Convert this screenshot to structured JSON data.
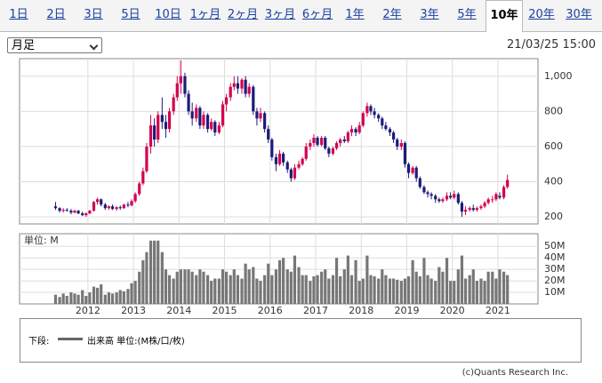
{
  "tabs": [
    "1日",
    "2日",
    "3日",
    "5日",
    "10日",
    "1ヶ月",
    "2ヶ月",
    "3ヶ月",
    "6ヶ月",
    "1年",
    "2年",
    "3年",
    "5年",
    "10年",
    "20年",
    "30年"
  ],
  "selected_tab": "10年",
  "period_select": "月足",
  "datetime": "21/03/25 15:00",
  "legend": {
    "label": "下段:",
    "text": "出来高 単位:(M株/口/枚)"
  },
  "copyright": "(c)Quants Research Inc.",
  "chart_data": {
    "type": "candlestick",
    "up_color": "#d4004f",
    "down_color": "#1c1c7a",
    "volume_color": "#777777",
    "grid": true,
    "xlim": [
      2010.5,
      2021.88
    ],
    "xticks": [
      2012,
      2013,
      2014,
      2015,
      2016,
      2017,
      2018,
      2019,
      2020,
      2021
    ],
    "ylim": [
      160,
      1100
    ],
    "yticks": [
      200,
      400,
      600,
      800,
      {
        "value": 1000,
        "label": "1,000"
      }
    ],
    "volume_ylim": [
      0,
      61
    ],
    "volume_unit_label": "単位: M",
    "volume_yticks": [
      {
        "value": 10,
        "label": "10M"
      },
      {
        "value": 20,
        "label": "20M"
      },
      {
        "value": 30,
        "label": "30M"
      },
      {
        "value": 40,
        "label": "40M"
      },
      {
        "value": 50,
        "label": "50M"
      }
    ],
    "x": [
      2011.29,
      2011.38,
      2011.46,
      2011.54,
      2011.63,
      2011.71,
      2011.79,
      2011.88,
      2011.96,
      2012.04,
      2012.13,
      2012.21,
      2012.29,
      2012.38,
      2012.46,
      2012.54,
      2012.63,
      2012.71,
      2012.79,
      2012.88,
      2012.96,
      2013.04,
      2013.13,
      2013.21,
      2013.29,
      2013.38,
      2013.46,
      2013.54,
      2013.63,
      2013.71,
      2013.79,
      2013.88,
      2013.96,
      2014.04,
      2014.13,
      2014.21,
      2014.29,
      2014.38,
      2014.46,
      2014.54,
      2014.63,
      2014.71,
      2014.79,
      2014.88,
      2014.96,
      2015.04,
      2015.13,
      2015.21,
      2015.29,
      2015.38,
      2015.46,
      2015.54,
      2015.63,
      2015.71,
      2015.79,
      2015.88,
      2015.96,
      2016.04,
      2016.13,
      2016.21,
      2016.29,
      2016.38,
      2016.46,
      2016.54,
      2016.63,
      2016.71,
      2016.79,
      2016.88,
      2016.96,
      2017.04,
      2017.13,
      2017.21,
      2017.29,
      2017.38,
      2017.46,
      2017.54,
      2017.63,
      2017.71,
      2017.79,
      2017.88,
      2017.96,
      2018.04,
      2018.13,
      2018.21,
      2018.29,
      2018.38,
      2018.46,
      2018.54,
      2018.63,
      2018.71,
      2018.79,
      2018.88,
      2018.96,
      2019.04,
      2019.13,
      2019.21,
      2019.29,
      2019.38,
      2019.46,
      2019.54,
      2019.63,
      2019.71,
      2019.79,
      2019.88,
      2019.96,
      2020.04,
      2020.13,
      2020.21,
      2020.29,
      2020.38,
      2020.46,
      2020.54,
      2020.63,
      2020.71,
      2020.79,
      2020.88,
      2020.96,
      2021.04,
      2021.13,
      2021.21
    ],
    "ohlc": [
      [
        260,
        285,
        240,
        250
      ],
      [
        250,
        255,
        225,
        235
      ],
      [
        235,
        250,
        225,
        240
      ],
      [
        240,
        250,
        230,
        235
      ],
      [
        235,
        245,
        215,
        225
      ],
      [
        225,
        240,
        220,
        235
      ],
      [
        235,
        240,
        215,
        220
      ],
      [
        220,
        230,
        205,
        210
      ],
      [
        210,
        225,
        200,
        220
      ],
      [
        220,
        240,
        215,
        235
      ],
      [
        235,
        290,
        230,
        285
      ],
      [
        285,
        310,
        270,
        300
      ],
      [
        300,
        305,
        260,
        270
      ],
      [
        270,
        280,
        240,
        250
      ],
      [
        250,
        265,
        240,
        260
      ],
      [
        260,
        270,
        240,
        245
      ],
      [
        245,
        260,
        235,
        255
      ],
      [
        255,
        265,
        240,
        250
      ],
      [
        250,
        275,
        245,
        270
      ],
      [
        270,
        285,
        255,
        265
      ],
      [
        265,
        300,
        260,
        290
      ],
      [
        290,
        340,
        280,
        330
      ],
      [
        330,
        400,
        320,
        390
      ],
      [
        390,
        480,
        380,
        460
      ],
      [
        460,
        620,
        450,
        600
      ],
      [
        600,
        780,
        560,
        720
      ],
      [
        720,
        760,
        600,
        640
      ],
      [
        640,
        800,
        620,
        780
      ],
      [
        780,
        880,
        700,
        740
      ],
      [
        740,
        780,
        650,
        700
      ],
      [
        700,
        820,
        680,
        800
      ],
      [
        800,
        900,
        780,
        880
      ],
      [
        880,
        1000,
        860,
        960
      ],
      [
        960,
        1090,
        900,
        1000
      ],
      [
        1000,
        1020,
        880,
        900
      ],
      [
        900,
        920,
        780,
        800
      ],
      [
        800,
        850,
        720,
        760
      ],
      [
        760,
        840,
        740,
        820
      ],
      [
        820,
        830,
        700,
        720
      ],
      [
        720,
        800,
        700,
        780
      ],
      [
        780,
        790,
        680,
        700
      ],
      [
        700,
        760,
        690,
        740
      ],
      [
        740,
        750,
        660,
        680
      ],
      [
        680,
        740,
        670,
        720
      ],
      [
        720,
        860,
        710,
        840
      ],
      [
        840,
        900,
        800,
        880
      ],
      [
        880,
        960,
        860,
        940
      ],
      [
        940,
        1000,
        920,
        960
      ],
      [
        960,
        1000,
        900,
        930
      ],
      [
        930,
        990,
        900,
        980
      ],
      [
        980,
        1000,
        880,
        900
      ],
      [
        900,
        960,
        880,
        940
      ],
      [
        940,
        950,
        780,
        800
      ],
      [
        800,
        820,
        720,
        760
      ],
      [
        760,
        820,
        740,
        790
      ],
      [
        790,
        800,
        680,
        700
      ],
      [
        700,
        720,
        620,
        640
      ],
      [
        640,
        650,
        520,
        540
      ],
      [
        540,
        560,
        460,
        500
      ],
      [
        500,
        580,
        490,
        560
      ],
      [
        560,
        570,
        490,
        510
      ],
      [
        510,
        520,
        450,
        470
      ],
      [
        470,
        480,
        400,
        420
      ],
      [
        420,
        500,
        410,
        480
      ],
      [
        480,
        520,
        470,
        500
      ],
      [
        500,
        540,
        490,
        530
      ],
      [
        530,
        620,
        520,
        600
      ],
      [
        600,
        640,
        580,
        620
      ],
      [
        620,
        670,
        600,
        650
      ],
      [
        650,
        660,
        600,
        610
      ],
      [
        610,
        660,
        600,
        650
      ],
      [
        650,
        660,
        580,
        590
      ],
      [
        590,
        600,
        540,
        560
      ],
      [
        560,
        600,
        550,
        590
      ],
      [
        590,
        630,
        580,
        620
      ],
      [
        620,
        650,
        600,
        640
      ],
      [
        640,
        660,
        620,
        630
      ],
      [
        630,
        690,
        620,
        680
      ],
      [
        680,
        720,
        660,
        700
      ],
      [
        700,
        710,
        660,
        680
      ],
      [
        680,
        740,
        670,
        720
      ],
      [
        720,
        800,
        710,
        790
      ],
      [
        790,
        850,
        770,
        830
      ],
      [
        830,
        840,
        780,
        800
      ],
      [
        800,
        820,
        760,
        780
      ],
      [
        780,
        790,
        740,
        760
      ],
      [
        760,
        770,
        700,
        720
      ],
      [
        720,
        740,
        690,
        700
      ],
      [
        700,
        710,
        660,
        680
      ],
      [
        680,
        690,
        620,
        640
      ],
      [
        640,
        650,
        580,
        600
      ],
      [
        600,
        640,
        580,
        620
      ],
      [
        620,
        630,
        480,
        500
      ],
      [
        500,
        510,
        420,
        450
      ],
      [
        450,
        490,
        440,
        480
      ],
      [
        480,
        490,
        400,
        420
      ],
      [
        420,
        430,
        360,
        370
      ],
      [
        370,
        380,
        330,
        340
      ],
      [
        340,
        350,
        310,
        330
      ],
      [
        330,
        340,
        300,
        320
      ],
      [
        320,
        330,
        280,
        300
      ],
      [
        300,
        310,
        280,
        290
      ],
      [
        290,
        310,
        280,
        300
      ],
      [
        300,
        340,
        290,
        320
      ],
      [
        320,
        340,
        300,
        310
      ],
      [
        310,
        350,
        300,
        330
      ],
      [
        330,
        340,
        270,
        280
      ],
      [
        280,
        290,
        200,
        230
      ],
      [
        230,
        260,
        210,
        240
      ],
      [
        240,
        260,
        230,
        250
      ],
      [
        250,
        270,
        230,
        240
      ],
      [
        240,
        260,
        230,
        250
      ],
      [
        250,
        270,
        240,
        260
      ],
      [
        260,
        290,
        250,
        280
      ],
      [
        280,
        310,
        270,
        300
      ],
      [
        300,
        320,
        280,
        300
      ],
      [
        300,
        340,
        290,
        330
      ],
      [
        320,
        340,
        300,
        310
      ],
      [
        310,
        380,
        300,
        370
      ],
      [
        370,
        440,
        360,
        410
      ]
    ],
    "volume": [
      8,
      6,
      9,
      7,
      10,
      9,
      8,
      12,
      7,
      10,
      15,
      14,
      17,
      8,
      10,
      9,
      10,
      12,
      11,
      13,
      18,
      20,
      28,
      38,
      45,
      55,
      55,
      55,
      45,
      30,
      25,
      22,
      28,
      30,
      30,
      30,
      28,
      25,
      30,
      28,
      25,
      20,
      22,
      22,
      30,
      28,
      25,
      30,
      25,
      22,
      35,
      30,
      32,
      22,
      20,
      25,
      35,
      25,
      30,
      38,
      40,
      30,
      28,
      42,
      32,
      25,
      25,
      20,
      24,
      25,
      28,
      30,
      22,
      25,
      40,
      24,
      30,
      42,
      25,
      38,
      20,
      22,
      42,
      25,
      24,
      22,
      30,
      25,
      22,
      22,
      21,
      20,
      22,
      24,
      38,
      28,
      24,
      40,
      25,
      22,
      20,
      32,
      28,
      40,
      20,
      20,
      30,
      42,
      22,
      25,
      30,
      20,
      22,
      20,
      28,
      28,
      22,
      30,
      28,
      25
    ]
  }
}
